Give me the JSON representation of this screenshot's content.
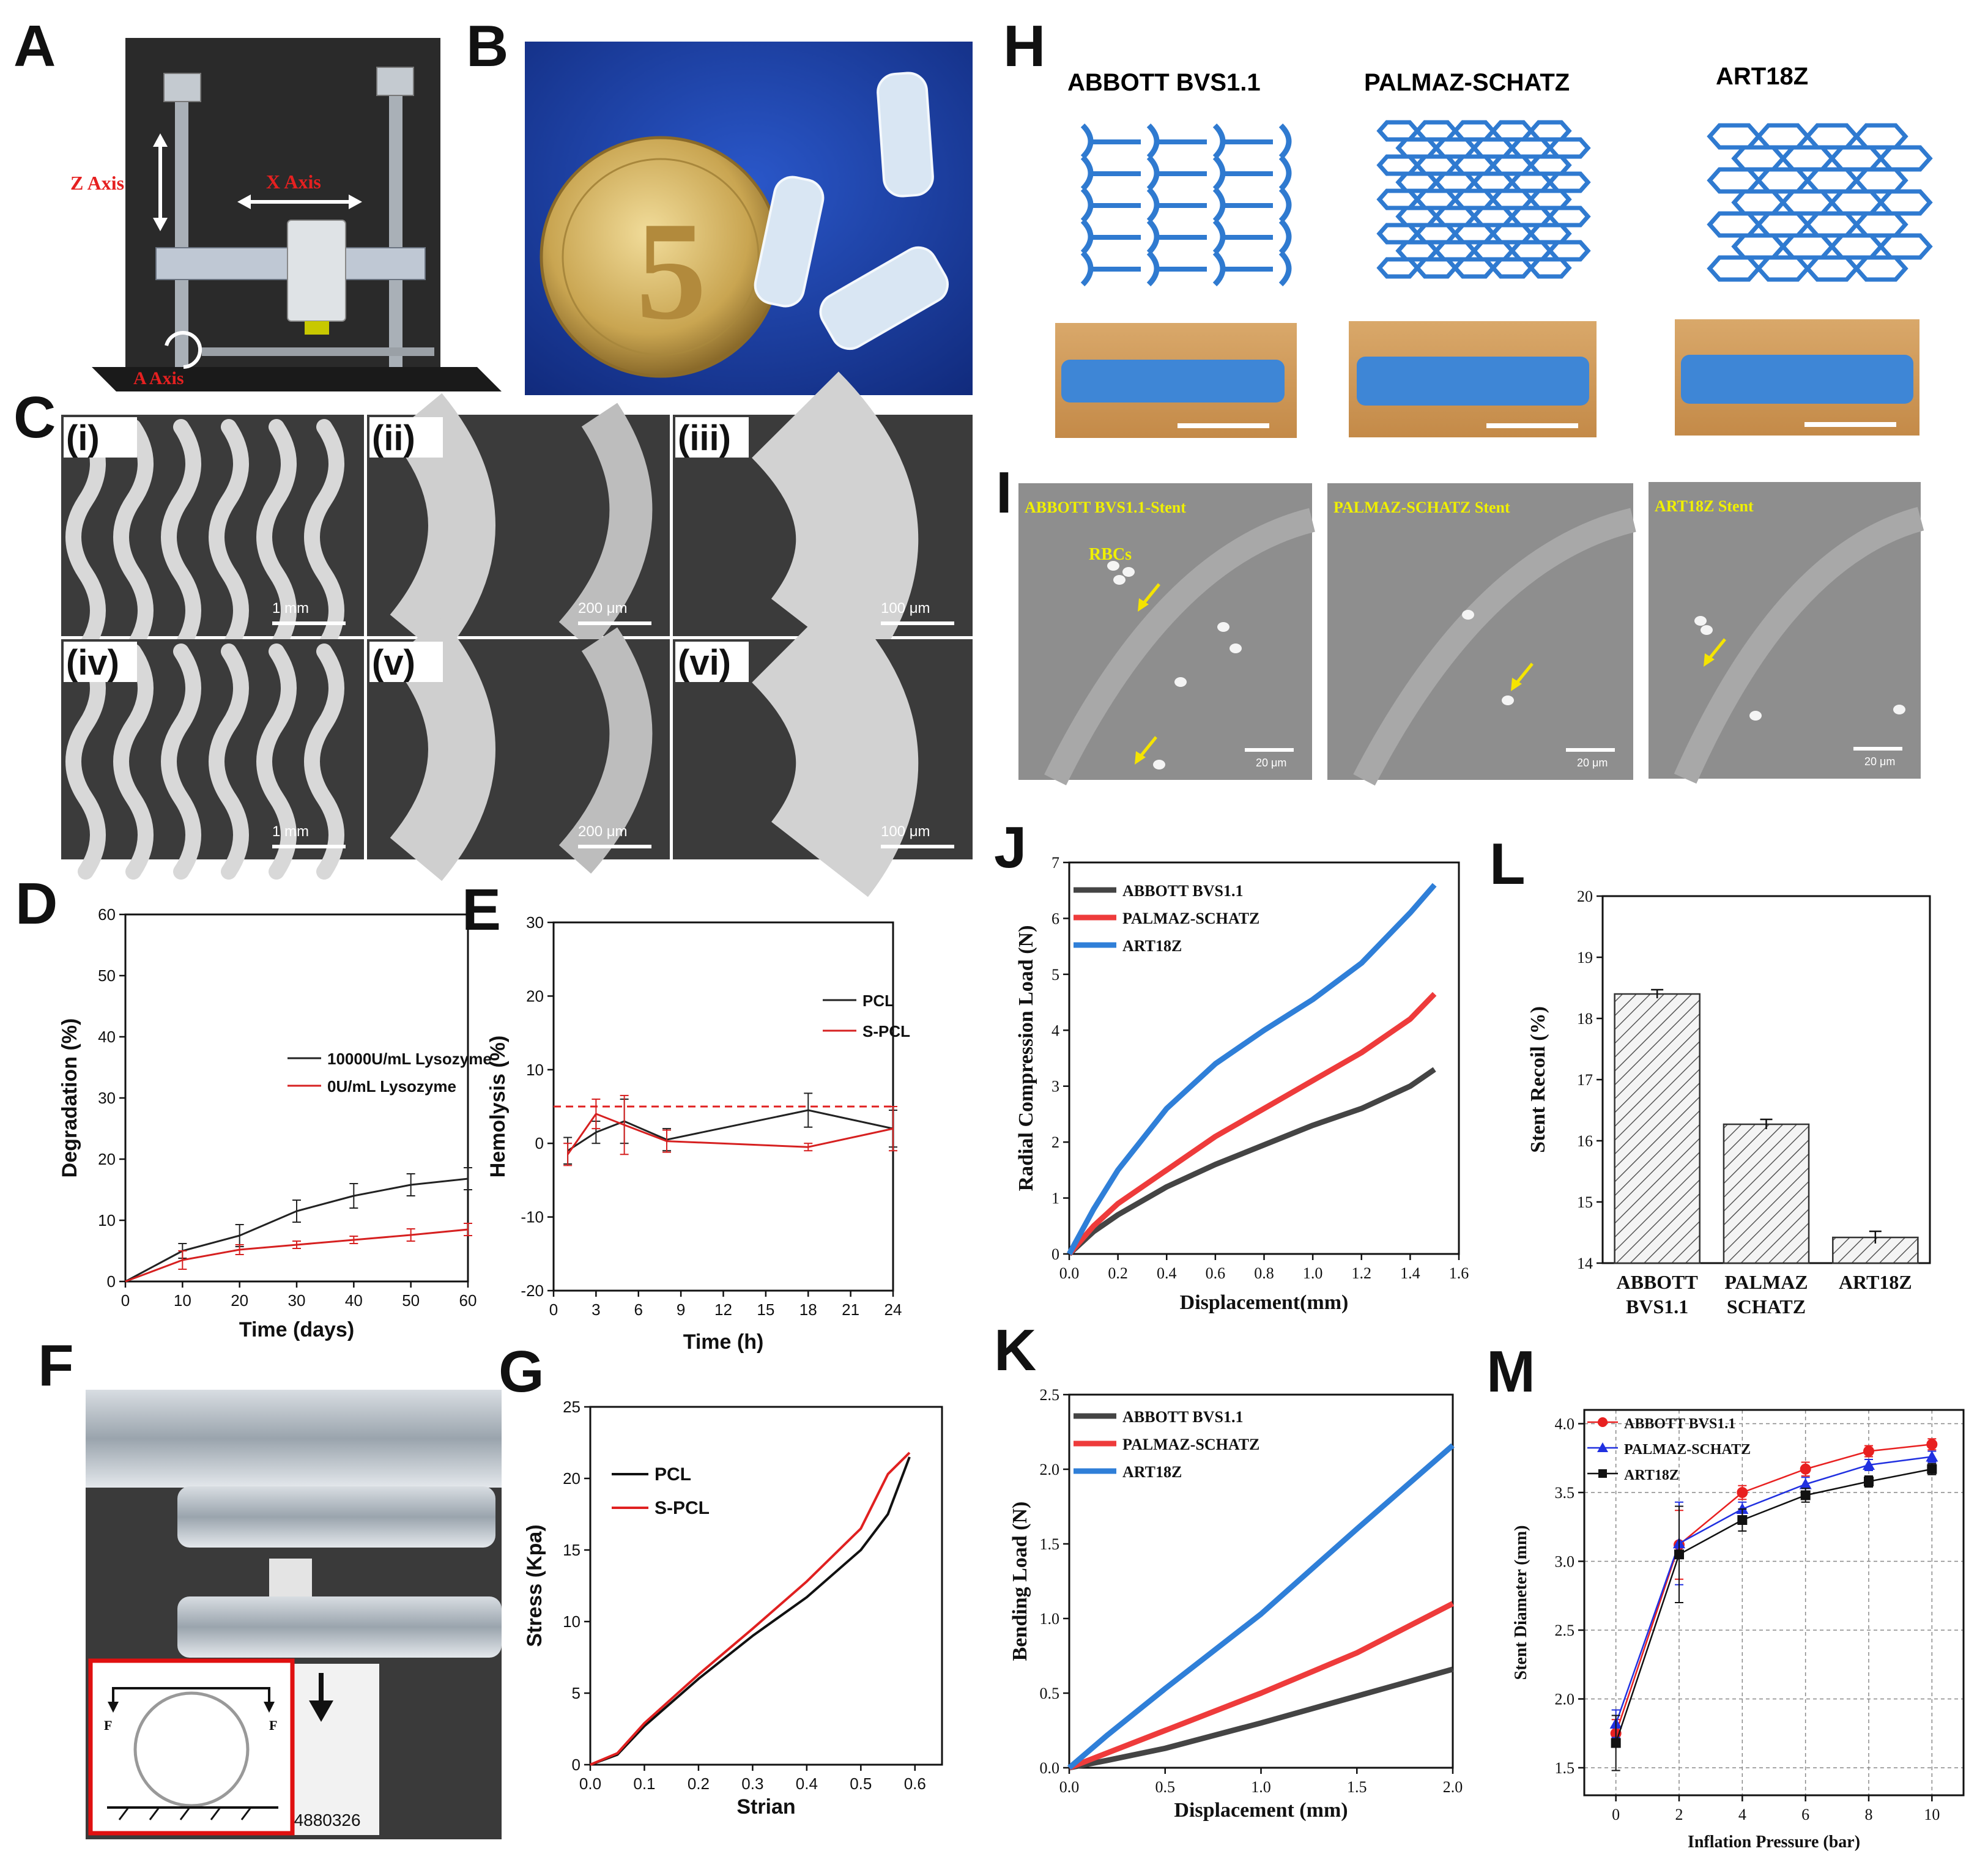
{
  "panel_labels": [
    "A",
    "B",
    "C",
    "D",
    "E",
    "F",
    "G",
    "H",
    "I",
    "J",
    "K",
    "L",
    "M"
  ],
  "panel_a": {
    "z_axis": "Z Axis",
    "x_axis": "X Axis",
    "a_axis": "A Axis"
  },
  "panel_b": {
    "coin_numeral": "5"
  },
  "panel_c": {
    "sub_labels": [
      "(i)",
      "(ii)",
      "(iii)",
      "(iv)",
      "(v)",
      "(vi)"
    ],
    "scale_bars": [
      "1 mm",
      "200 μm",
      "100 μm",
      "1 mm",
      "200 μm",
      "100 μm"
    ]
  },
  "panel_f": {
    "force_label": "F",
    "barcode_text": "04880326"
  },
  "panel_h": {
    "titles": [
      "ABBOTT BVS1.1",
      "PALMAZ-SCHATZ",
      "ART18Z"
    ]
  },
  "panel_i": {
    "titles": [
      "ABBOTT BVS1.1-Stent",
      "PALMAZ-SCHATZ Stent",
      "ART18Z Stent"
    ],
    "rbc_label": "RBCs",
    "scale_bars": [
      "20 μm",
      "20 μm",
      "20 μm"
    ]
  },
  "chart_data": [
    {
      "panel": "D",
      "type": "line",
      "xlabel": "Time (days)",
      "ylabel": "Degradation (%)",
      "xlim": [
        0,
        60
      ],
      "ylim": [
        0,
        60
      ],
      "xticks": [
        0,
        10,
        20,
        30,
        40,
        50,
        60
      ],
      "yticks": [
        0,
        10,
        20,
        30,
        40,
        50,
        60
      ],
      "x": [
        0,
        10,
        20,
        30,
        40,
        50,
        60
      ],
      "series": [
        {
          "name": "10000U/mL Lysozyme",
          "color": "#222222",
          "values": [
            0,
            5,
            7.5,
            11.5,
            14,
            15.8,
            16.8
          ],
          "errors": [
            0,
            1.2,
            1.8,
            1.8,
            2,
            1.8,
            1.8
          ]
        },
        {
          "name": "0U/mL Lysozyme",
          "color": "#d62020",
          "values": [
            0,
            3.5,
            5.2,
            6,
            6.8,
            7.6,
            8.5
          ],
          "errors": [
            0,
            1.5,
            0.8,
            0.6,
            0.6,
            1,
            1
          ]
        }
      ],
      "legend": "center-right"
    },
    {
      "panel": "E",
      "type": "line",
      "xlabel": "Time (h)",
      "ylabel": "Hemolysis (%)",
      "xlim": [
        0,
        24
      ],
      "ylim": [
        -20,
        30
      ],
      "xticks": [
        0,
        3,
        6,
        9,
        12,
        15,
        18,
        21,
        24
      ],
      "yticks": [
        -20,
        -10,
        0,
        10,
        20,
        30
      ],
      "x": [
        1,
        3,
        5,
        8,
        18,
        24
      ],
      "series": [
        {
          "name": "PCL",
          "color": "#222222",
          "values": [
            -1,
            1.5,
            3,
            0.5,
            4.5,
            2
          ],
          "errors": [
            1.8,
            1.5,
            3,
            1.5,
            2.3,
            2.5
          ]
        },
        {
          "name": "S-PCL",
          "color": "#d62020",
          "values": [
            -1.5,
            4,
            2.5,
            0.3,
            -0.5,
            2
          ],
          "errors": [
            1.5,
            2,
            4,
            1.5,
            0.5,
            3
          ]
        }
      ],
      "reference_line": 5,
      "legend": "top-right"
    },
    {
      "panel": "G",
      "type": "line",
      "xlabel": "Strian",
      "ylabel": "Stress (Kpa)",
      "xlim": [
        0,
        0.65
      ],
      "ylim": [
        0,
        25
      ],
      "xticks": [
        0.0,
        0.1,
        0.2,
        0.3,
        0.4,
        0.5,
        0.6
      ],
      "yticks": [
        0,
        5,
        10,
        15,
        20,
        25
      ],
      "series": [
        {
          "name": "PCL",
          "color": "#111111",
          "x": [
            0,
            0.05,
            0.1,
            0.2,
            0.3,
            0.4,
            0.5,
            0.55,
            0.59
          ],
          "values": [
            0,
            0.7,
            2.7,
            6,
            9,
            11.7,
            15,
            17.5,
            21.5
          ]
        },
        {
          "name": "S-PCL",
          "color": "#e02020",
          "x": [
            0,
            0.05,
            0.1,
            0.2,
            0.3,
            0.4,
            0.5,
            0.55,
            0.59
          ],
          "values": [
            0,
            0.8,
            2.9,
            6.3,
            9.5,
            12.8,
            16.5,
            20.3,
            21.8
          ]
        }
      ],
      "legend": "top-left"
    },
    {
      "panel": "J",
      "type": "line",
      "xlabel": "Displacement(mm)",
      "ylabel": "Radial Compression Load (N)",
      "xlim": [
        0,
        1.6
      ],
      "ylim": [
        0,
        7
      ],
      "xticks": [
        0.0,
        0.2,
        0.4,
        0.6,
        0.8,
        1.0,
        1.2,
        1.4,
        1.6
      ],
      "yticks": [
        0,
        1,
        2,
        3,
        4,
        5,
        6,
        7
      ],
      "series": [
        {
          "name": "ABBOTT BVS1.1",
          "color": "#444444",
          "x": [
            0,
            0.1,
            0.2,
            0.4,
            0.6,
            0.8,
            1.0,
            1.2,
            1.4,
            1.5
          ],
          "values": [
            0,
            0.4,
            0.7,
            1.2,
            1.6,
            1.95,
            2.3,
            2.6,
            3.0,
            3.3
          ]
        },
        {
          "name": "PALMAZ-SCHATZ",
          "color": "#ee3b3b",
          "x": [
            0,
            0.1,
            0.2,
            0.4,
            0.6,
            0.8,
            1.0,
            1.2,
            1.4,
            1.5
          ],
          "values": [
            0,
            0.5,
            0.9,
            1.5,
            2.1,
            2.6,
            3.1,
            3.6,
            4.2,
            4.65
          ]
        },
        {
          "name": "ART18Z",
          "color": "#2f7fd8",
          "x": [
            0,
            0.1,
            0.2,
            0.4,
            0.6,
            0.8,
            1.0,
            1.2,
            1.4,
            1.5
          ],
          "values": [
            0,
            0.8,
            1.5,
            2.6,
            3.4,
            4.0,
            4.55,
            5.2,
            6.1,
            6.6
          ]
        }
      ],
      "legend": "top-left"
    },
    {
      "panel": "K",
      "type": "line",
      "xlabel": "Displacement (mm)",
      "ylabel": "Bending Load (N)",
      "xlim": [
        0,
        2.0
      ],
      "ylim": [
        0,
        2.5
      ],
      "xticks": [
        0.0,
        0.5,
        1.0,
        1.5,
        2.0
      ],
      "yticks": [
        0.0,
        0.5,
        1.0,
        1.5,
        2.0,
        2.5
      ],
      "series": [
        {
          "name": "ABBOTT BVS1.1",
          "color": "#444444",
          "x": [
            0,
            0.2,
            0.5,
            1.0,
            1.5,
            2.0
          ],
          "values": [
            0,
            0.05,
            0.13,
            0.3,
            0.48,
            0.66
          ]
        },
        {
          "name": "PALMAZ-SCHATZ",
          "color": "#ee3b3b",
          "x": [
            0,
            0.2,
            0.5,
            1.0,
            1.5,
            2.0
          ],
          "values": [
            0,
            0.1,
            0.25,
            0.5,
            0.77,
            1.1
          ]
        },
        {
          "name": "ART18Z",
          "color": "#2f7fd8",
          "x": [
            0,
            0.2,
            0.5,
            1.0,
            1.5,
            2.0
          ],
          "values": [
            0,
            0.22,
            0.53,
            1.03,
            1.6,
            2.16
          ]
        }
      ],
      "legend": "top-left"
    },
    {
      "panel": "L",
      "type": "bar",
      "xlabel": "",
      "ylabel": "Stent Recoil (%)",
      "ylim": [
        14,
        20
      ],
      "yticks": [
        14,
        15,
        16,
        17,
        18,
        19,
        20
      ],
      "categories": [
        "ABBOTT BVS1.1",
        "PALMAZ SCHATZ",
        "ART18Z"
      ],
      "category_lines": [
        [
          "ABBOTT",
          "BVS1.1"
        ],
        [
          "PALMAZ",
          "SCHATZ"
        ],
        [
          "ART18Z"
        ]
      ],
      "values": [
        18.4,
        16.27,
        14.42
      ],
      "errors": [
        0.07,
        0.08,
        0.1
      ]
    },
    {
      "panel": "M",
      "type": "line",
      "xlabel": "Inflation Pressure (bar)",
      "ylabel": "Stent Diameter (mm)",
      "xlim": [
        -1,
        11
      ],
      "ylim": [
        1.3,
        4.1
      ],
      "xticks": [
        0,
        2,
        4,
        6,
        8,
        10
      ],
      "yticks": [
        1.5,
        2.0,
        2.5,
        3.0,
        3.5,
        4.0
      ],
      "x": [
        0,
        2,
        4,
        6,
        8,
        10
      ],
      "series": [
        {
          "name": "ABBOTT BVS1.1",
          "color": "#e82020",
          "marker": "circle",
          "values": [
            1.75,
            3.12,
            3.5,
            3.67,
            3.8,
            3.85
          ],
          "errors": [
            0.1,
            0.25,
            0.05,
            0.05,
            0.04,
            0.04
          ]
        },
        {
          "name": "PALMAZ-SCHATZ",
          "color": "#2030e0",
          "marker": "triangle",
          "values": [
            1.82,
            3.13,
            3.38,
            3.56,
            3.7,
            3.76
          ],
          "errors": [
            0.1,
            0.3,
            0.05,
            0.05,
            0.04,
            0.04
          ]
        },
        {
          "name": "ART18Z",
          "color": "#111111",
          "marker": "square",
          "values": [
            1.68,
            3.05,
            3.3,
            3.48,
            3.58,
            3.67
          ],
          "errors": [
            0.2,
            0.35,
            0.08,
            0.05,
            0.04,
            0.04
          ]
        }
      ],
      "grid": true,
      "legend": "top-left"
    }
  ]
}
